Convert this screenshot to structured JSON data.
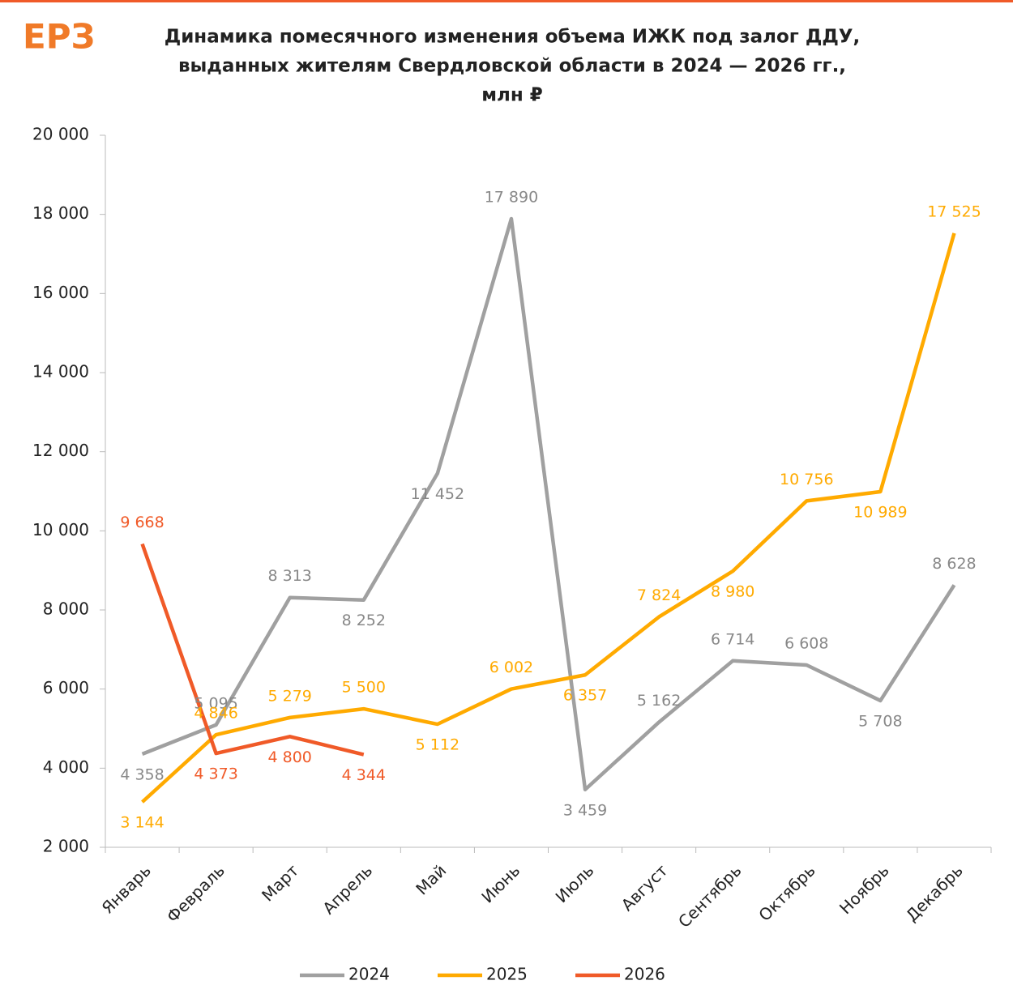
{
  "chart_data": {
    "type": "line",
    "logo": "ЕРЗ",
    "title_lines": [
      "Динамика помесячного изменения объема ИЖК под залог ДДУ,",
      "выданных жителям Свердловской области в 2024 — 2026 гг.,",
      "млн ₽"
    ],
    "categories": [
      "Январь",
      "Февраль",
      "Март",
      "Апрель",
      "Май",
      "Июнь",
      "Июль",
      "Август",
      "Сентябрь",
      "Октябрь",
      "Ноябрь",
      "Декабрь"
    ],
    "series": [
      {
        "name": "2024",
        "color": "#a0a0a0",
        "values": [
          4358,
          5095,
          8313,
          8252,
          11452,
          17890,
          3459,
          5162,
          6714,
          6608,
          5708,
          8628
        ],
        "value_labels": [
          "4 358",
          "5 095",
          "8 313",
          "8 252",
          "11 452",
          "17 890",
          "3 459",
          "5 162",
          "6 714",
          "6 608",
          "5 708",
          "8 628"
        ]
      },
      {
        "name": "2025",
        "color": "#ffaa00",
        "values": [
          3144,
          4846,
          5279,
          5500,
          5112,
          6002,
          6357,
          7824,
          8980,
          10756,
          10989,
          17525
        ],
        "value_labels": [
          "3 144",
          "4 846",
          "5 279",
          "5 500",
          "5 112",
          "6 002",
          "6 357",
          "7 824",
          "8 980",
          "10 756",
          "10 989",
          "17 525"
        ]
      },
      {
        "name": "2026",
        "color": "#f05a28",
        "values": [
          9668,
          4373,
          4800,
          4344,
          null,
          null,
          null,
          null,
          null,
          null,
          null,
          null
        ],
        "value_labels": [
          "9 668",
          "4 373",
          "4 800",
          "4 344",
          null,
          null,
          null,
          null,
          null,
          null,
          null,
          null
        ]
      }
    ],
    "ylim": [
      2000,
      20000
    ],
    "yticks": [
      {
        "value": 2000,
        "label": "2 000"
      },
      {
        "value": 4000,
        "label": "4 000"
      },
      {
        "value": 6000,
        "label": "6 000"
      },
      {
        "value": 8000,
        "label": "8 000"
      },
      {
        "value": 10000,
        "label": "10 000"
      },
      {
        "value": 12000,
        "label": "12 000"
      },
      {
        "value": 14000,
        "label": "14 000"
      },
      {
        "value": 16000,
        "label": "16 000"
      },
      {
        "value": 18000,
        "label": "18 000"
      },
      {
        "value": 20000,
        "label": "20 000"
      }
    ],
    "legend": "bottom"
  }
}
